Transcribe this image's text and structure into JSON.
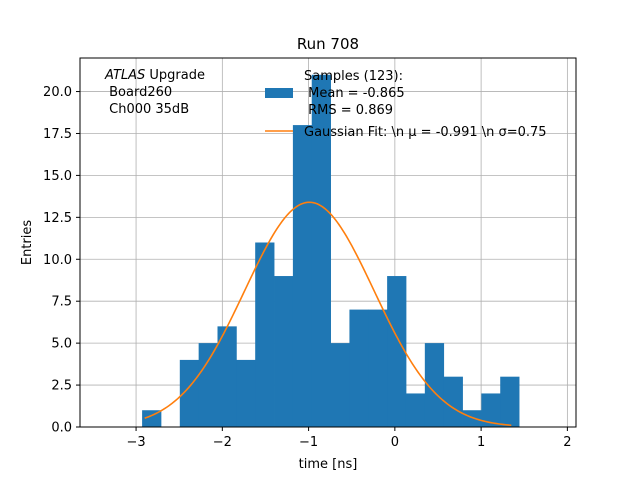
{
  "chart_data": {
    "type": "bar",
    "title": "Run 708",
    "xlabel": "time [ns]",
    "ylabel": "Entries",
    "xlim": [
      -3.65,
      2.1
    ],
    "ylim": [
      0,
      22
    ],
    "grid": true,
    "xticks": [
      -3,
      -2,
      -1,
      0,
      1,
      2
    ],
    "xtick_labels": [
      "−3",
      "−2",
      "−1",
      "0",
      "1",
      "2"
    ],
    "yticks": [
      0,
      2.5,
      5,
      7.5,
      10,
      12.5,
      15,
      17.5,
      20
    ],
    "ytick_labels": [
      "0.0",
      "2.5",
      "5.0",
      "7.5",
      "10.0",
      "12.5",
      "15.0",
      "17.5",
      "20.0"
    ],
    "hist": {
      "bin_start": -2.93,
      "bin_width": 0.2185,
      "values": [
        1,
        0,
        4,
        5,
        6,
        4,
        11,
        9,
        18,
        21,
        5,
        7,
        7,
        9,
        2,
        5,
        3,
        1,
        2,
        3
      ],
      "color": "#1f77b4"
    },
    "gaussian_fit": {
      "mu": -0.991,
      "sigma": 0.75,
      "amplitude": 13.4,
      "x_range": [
        -2.9,
        1.35
      ],
      "color": "#ff7f0e"
    },
    "legend": {
      "location": "upper right",
      "samples_lines": [
        "Samples (123):",
        " Mean = -0.865",
        " RMS = 0.869"
      ],
      "fit_label": "Gaussian Fit: \\n μ = -0.991 \\n σ=0.75"
    },
    "annotation": {
      "atlas_word": "ATLAS",
      "atlas_rest": " Upgrade",
      "lines": [
        " Board260",
        " Ch000 35dB"
      ]
    }
  }
}
